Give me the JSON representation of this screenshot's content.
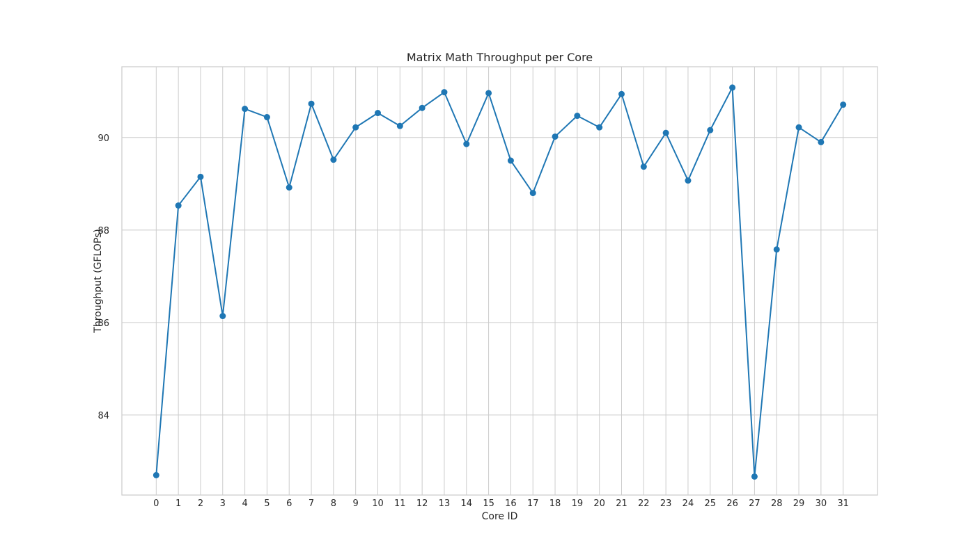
{
  "chart_data": {
    "type": "line",
    "title": "Matrix Math Throughput per Core",
    "xlabel": "Core ID",
    "ylabel": "Throughput (GFLOPs)",
    "x": [
      0,
      1,
      2,
      3,
      4,
      5,
      6,
      7,
      8,
      9,
      10,
      11,
      12,
      13,
      14,
      15,
      16,
      17,
      18,
      19,
      20,
      21,
      22,
      23,
      24,
      25,
      26,
      27,
      28,
      29,
      30,
      31
    ],
    "x_tick_labels": [
      "0",
      "1",
      "2",
      "3",
      "4",
      "5",
      "6",
      "7",
      "8",
      "9",
      "10",
      "11",
      "12",
      "13",
      "14",
      "15",
      "16",
      "17",
      "18",
      "19",
      "20",
      "21",
      "22",
      "23",
      "24",
      "25",
      "26",
      "27",
      "28",
      "29",
      "30",
      "31"
    ],
    "y_ticks": [
      84,
      86,
      88,
      90
    ],
    "y_tick_labels": [
      "84",
      "86",
      "88",
      "90"
    ],
    "xlim": [
      -1.55,
      32.55
    ],
    "ylim": [
      82.27,
      91.53
    ],
    "grid": true,
    "series": [
      {
        "color": "#1f77b4",
        "marker": "circle",
        "values": [
          82.7,
          88.53,
          89.15,
          86.14,
          90.62,
          90.44,
          88.92,
          90.73,
          89.52,
          90.22,
          90.53,
          90.25,
          90.64,
          90.98,
          89.86,
          90.96,
          89.5,
          88.8,
          90.02,
          90.47,
          90.22,
          90.94,
          89.37,
          90.1,
          89.07,
          90.16,
          91.08,
          82.67,
          87.58,
          90.22,
          89.9,
          90.71
        ]
      }
    ]
  }
}
